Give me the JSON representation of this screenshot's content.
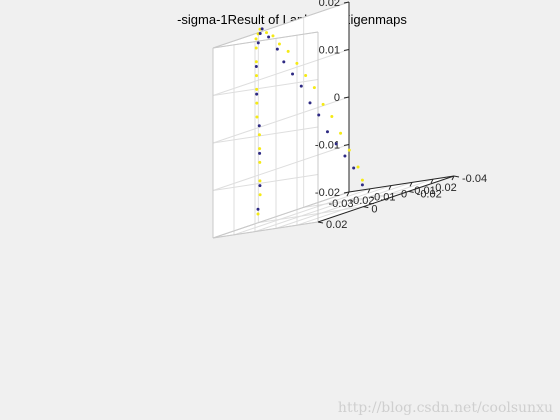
{
  "chart_data": {
    "type": "scatter3d",
    "title": "-sigma-1Result of Laplacian Eigenmaps",
    "grid": true,
    "view": "default 3-D (azimuth -37.5, elevation 30)",
    "axes": {
      "x": {
        "range": [
          -0.03,
          0.02
        ],
        "ticks": [
          -0.03,
          -0.02,
          -0.01,
          0,
          0.01,
          0.02
        ],
        "tick_labels": [
          "-0.03",
          "-0.02",
          "-0.01",
          "0",
          "0.01",
          "0.02"
        ]
      },
      "y": {
        "range": [
          -0.04,
          0.02
        ],
        "ticks": [
          -0.04,
          -0.02,
          0,
          0.02
        ],
        "tick_labels": [
          "-0.04",
          "-0.02",
          "0",
          "0.02"
        ]
      },
      "z": {
        "range": [
          -0.02,
          0.02
        ],
        "ticks": [
          -0.02,
          -0.01,
          0,
          0.01,
          0.02
        ],
        "tick_labels": [
          "-0.02",
          "-0.01",
          "0",
          "0.01",
          "0.02"
        ]
      }
    },
    "series": [
      {
        "color": "#f5ea14",
        "points": [
          [
            -0.028,
            0.002,
            -0.018
          ],
          [
            -0.027,
            0.002,
            -0.014
          ],
          [
            -0.026,
            0.003,
            -0.011
          ],
          [
            -0.025,
            0.004,
            -0.007
          ],
          [
            -0.024,
            0.005,
            -0.004
          ],
          [
            -0.023,
            0.006,
            -0.001
          ],
          [
            -0.022,
            0.008,
            0.003
          ],
          [
            -0.021,
            0.009,
            0.006
          ],
          [
            -0.02,
            0.01,
            0.009
          ],
          [
            -0.019,
            0.011,
            0.012
          ],
          [
            -0.018,
            0.012,
            0.015
          ],
          [
            -0.017,
            0.013,
            0.018
          ],
          [
            -0.016,
            0.014,
            0.02
          ],
          [
            -0.015,
            0.014,
            0.021
          ],
          [
            -0.013,
            0.015,
            0.022
          ],
          [
            -0.011,
            0.014,
            0.021
          ],
          [
            -0.009,
            0.013,
            0.02
          ],
          [
            -0.007,
            0.012,
            0.018
          ],
          [
            -0.005,
            0.01,
            0.016
          ],
          [
            -0.003,
            0.008,
            0.013
          ],
          [
            -0.001,
            0.006,
            0.01
          ],
          [
            0.001,
            0.004,
            0.007
          ],
          [
            0.003,
            0.002,
            0.003
          ],
          [
            0.005,
            0,
            0
          ],
          [
            0.007,
            -0.002,
            -0.004
          ],
          [
            0.009,
            -0.004,
            -0.008
          ],
          [
            0.011,
            -0.006,
            -0.012
          ],
          [
            0.012,
            -0.007,
            -0.015
          ]
        ]
      },
      {
        "color": "#2e2a83",
        "points": [
          [
            -0.028,
            0.002,
            -0.017
          ],
          [
            -0.026,
            0.003,
            -0.012
          ],
          [
            -0.024,
            0.005,
            -0.005
          ],
          [
            -0.022,
            0.007,
            0.001
          ],
          [
            -0.02,
            0.01,
            0.008
          ],
          [
            -0.018,
            0.012,
            0.014
          ],
          [
            -0.016,
            0.013,
            0.019
          ],
          [
            -0.014,
            0.014,
            0.021
          ],
          [
            -0.012,
            0.015,
            0.022
          ],
          [
            -0.01,
            0.014,
            0.02
          ],
          [
            -0.008,
            0.012,
            0.017
          ],
          [
            -0.006,
            0.011,
            0.014
          ],
          [
            -0.004,
            0.009,
            0.011
          ],
          [
            -0.002,
            0.007,
            0.008
          ],
          [
            0,
            0.005,
            0.004
          ],
          [
            0.002,
            0.003,
            0.001
          ],
          [
            0.004,
            0.001,
            -0.003
          ],
          [
            0.006,
            -0.001,
            -0.006
          ],
          [
            0.008,
            -0.003,
            -0.009
          ],
          [
            0.01,
            -0.005,
            -0.012
          ],
          [
            0.012,
            -0.007,
            -0.016
          ]
        ]
      }
    ]
  },
  "watermark": "http://blog.csdn.net/coolsunxu"
}
